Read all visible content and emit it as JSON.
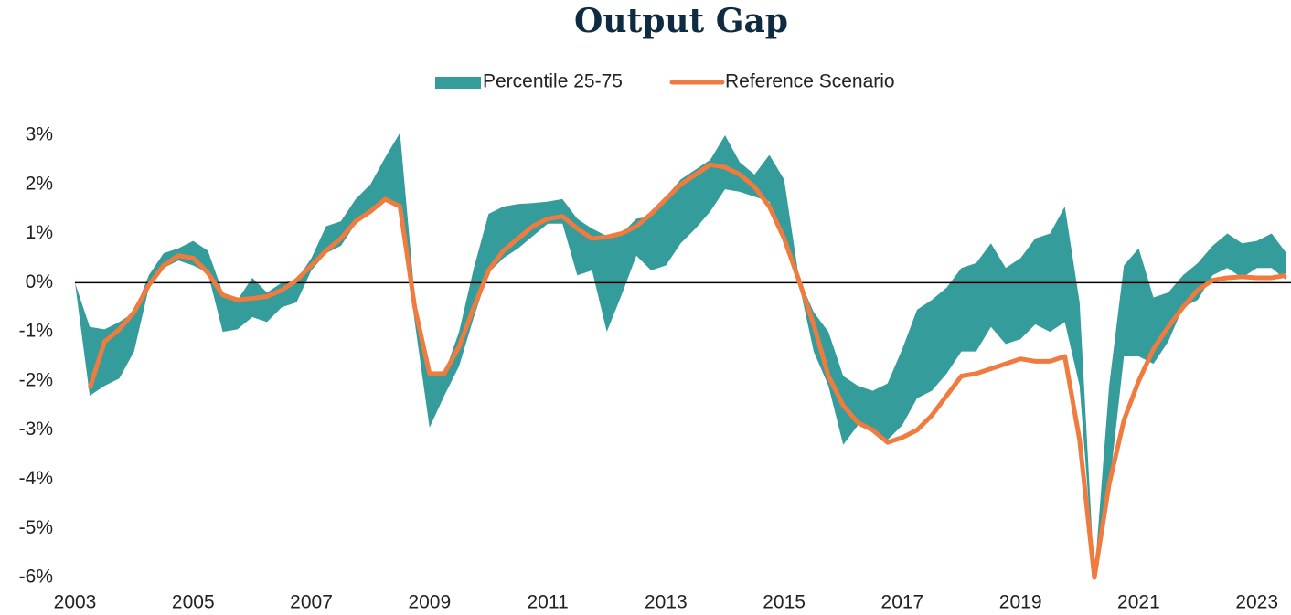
{
  "chart_data": {
    "type": "band-line",
    "title": "Output Gap",
    "x": [
      2003,
      2003.25,
      2003.5,
      2003.75,
      2004,
      2004.25,
      2004.5,
      2004.75,
      2005,
      2005.25,
      2005.5,
      2005.75,
      2006,
      2006.25,
      2006.5,
      2006.75,
      2007,
      2007.25,
      2007.5,
      2007.75,
      2008,
      2008.25,
      2008.5,
      2008.75,
      2009,
      2009.25,
      2009.5,
      2009.75,
      2010,
      2010.25,
      2010.5,
      2010.75,
      2011,
      2011.25,
      2011.5,
      2011.75,
      2012,
      2012.25,
      2012.5,
      2012.75,
      2013,
      2013.25,
      2013.5,
      2013.75,
      2014,
      2014.25,
      2014.5,
      2014.75,
      2015,
      2015.25,
      2015.5,
      2015.75,
      2016,
      2016.25,
      2016.5,
      2016.75,
      2017,
      2017.25,
      2017.5,
      2017.75,
      2018,
      2018.25,
      2018.5,
      2018.75,
      2019,
      2019.25,
      2019.5,
      2019.75,
      2020,
      2020.25,
      2020.5,
      2020.75,
      2021,
      2021.25,
      2021.5,
      2021.75,
      2022,
      2022.25,
      2022.5,
      2022.75,
      2023,
      2023.25,
      2023.5
    ],
    "series": [
      {
        "name": "Percentile 25-75",
        "color": "#359c9c",
        "low": [
          0,
          -2.3,
          -2.1,
          -1.95,
          -1.4,
          -0.1,
          0.3,
          0.45,
          0.35,
          0.2,
          -1.0,
          -0.95,
          -0.7,
          -0.8,
          -0.5,
          -0.4,
          0.25,
          0.6,
          0.75,
          1.2,
          1.4,
          1.65,
          1.5,
          -0.8,
          -2.95,
          -2.3,
          -1.7,
          -0.7,
          0.2,
          0.5,
          0.7,
          0.95,
          1.2,
          1.2,
          0.15,
          0.25,
          -1.0,
          -0.25,
          0.55,
          0.25,
          0.35,
          0.8,
          1.1,
          1.45,
          1.9,
          1.85,
          1.75,
          1.65,
          0.9,
          0,
          -1.4,
          -2.1,
          -3.3,
          -2.9,
          -3.05,
          -3.2,
          -2.9,
          -2.35,
          -2.2,
          -1.85,
          -1.4,
          -1.4,
          -0.9,
          -1.25,
          -1.15,
          -0.85,
          -1.0,
          -0.8,
          -2.1,
          -6.0,
          -4.2,
          -1.5,
          -1.5,
          -1.65,
          -1.2,
          -0.5,
          -0.35,
          0.15,
          0.3,
          0.1,
          0.3,
          0.3,
          0.05
        ],
        "high": [
          0,
          -0.9,
          -0.95,
          -0.8,
          -0.6,
          0.15,
          0.6,
          0.7,
          0.85,
          0.65,
          -0.2,
          -0.35,
          0.1,
          -0.2,
          0.0,
          0.05,
          0.5,
          1.15,
          1.25,
          1.7,
          2.0,
          2.55,
          3.05,
          -0.3,
          -1.9,
          -1.85,
          -1.0,
          0.3,
          1.4,
          1.55,
          1.6,
          1.62,
          1.65,
          1.7,
          1.3,
          1.1,
          0.95,
          1.0,
          1.3,
          1.35,
          1.75,
          2.1,
          2.3,
          2.5,
          3.0,
          2.45,
          2.2,
          2.6,
          2.1,
          0.1,
          -0.6,
          -1.0,
          -1.9,
          -2.1,
          -2.2,
          -2.05,
          -1.35,
          -0.55,
          -0.35,
          -0.1,
          0.3,
          0.4,
          0.8,
          0.3,
          0.5,
          0.9,
          1.0,
          1.55,
          -0.4,
          -6.0,
          -2.1,
          0.35,
          0.7,
          -0.3,
          -0.2,
          0.15,
          0.4,
          0.75,
          1.0,
          0.8,
          0.85,
          1.0,
          0.6
        ]
      },
      {
        "name": "Reference Scenario",
        "color": "#f07b3f",
        "values": [
          null,
          -2.15,
          -1.2,
          -0.95,
          -0.6,
          -0.05,
          0.35,
          0.55,
          0.5,
          0.2,
          -0.25,
          -0.35,
          -0.32,
          -0.28,
          -0.15,
          0.05,
          0.35,
          0.65,
          0.9,
          1.25,
          1.45,
          1.7,
          1.55,
          -0.5,
          -1.85,
          -1.85,
          -1.3,
          -0.5,
          0.25,
          0.65,
          0.9,
          1.15,
          1.3,
          1.35,
          1.1,
          0.9,
          0.93,
          1.0,
          1.15,
          1.4,
          1.7,
          2.0,
          2.2,
          2.4,
          2.35,
          2.2,
          1.95,
          1.55,
          0.9,
          0.05,
          -0.85,
          -1.9,
          -2.5,
          -2.85,
          -3.0,
          -3.25,
          -3.15,
          -3.0,
          -2.7,
          -2.3,
          -1.9,
          -1.85,
          -1.75,
          -1.65,
          -1.55,
          -1.6,
          -1.6,
          -1.5,
          -3.2,
          -6.0,
          -4.1,
          -2.8,
          -2.0,
          -1.35,
          -0.9,
          -0.5,
          -0.15,
          0.05,
          0.1,
          0.12,
          0.1,
          0.1,
          0.15
        ]
      }
    ],
    "xlim": [
      2003,
      2023.5
    ],
    "xticks": [
      2003,
      2005,
      2007,
      2009,
      2011,
      2013,
      2015,
      2017,
      2019,
      2021,
      2023
    ],
    "ylim": [
      -6,
      3
    ],
    "yticks": [
      {
        "value": -6,
        "label": "-6%"
      },
      {
        "value": -5,
        "label": "-5%"
      },
      {
        "value": -4,
        "label": "-4%"
      },
      {
        "value": -3,
        "label": "-3%"
      },
      {
        "value": -2,
        "label": "-2%"
      },
      {
        "value": -1,
        "label": "-1%"
      },
      {
        "value": 0,
        "label": "0%"
      },
      {
        "value": 1,
        "label": "1%"
      },
      {
        "value": 2,
        "label": "2%"
      },
      {
        "value": 3,
        "label": "3%"
      }
    ],
    "zero_line": true,
    "legend": "top"
  }
}
